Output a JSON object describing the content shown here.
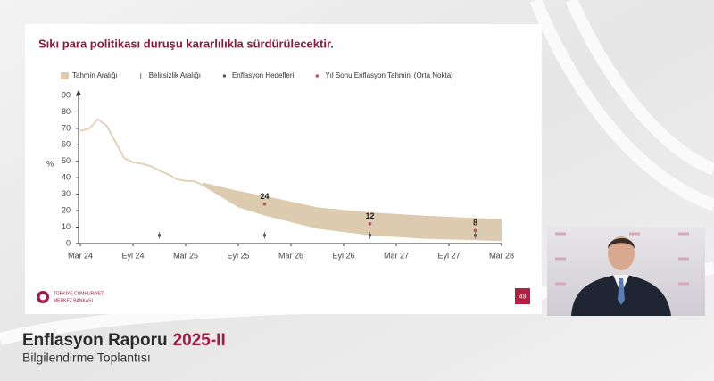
{
  "chart_data": {
    "type": "line",
    "title": "Sıkı para politikası duruşu kararlılıkla sürdürülecektir.",
    "ylabel": "%",
    "xlim": [
      "2024-03",
      "2028-03"
    ],
    "xticks": [
      {
        "value": "2024-03",
        "label": "Mar 24"
      },
      {
        "value": "2024-09",
        "label": "Eyl 24"
      },
      {
        "value": "2025-03",
        "label": "Mar 25"
      },
      {
        "value": "2025-09",
        "label": "Eyl 25"
      },
      {
        "value": "2026-03",
        "label": "Mar 26"
      },
      {
        "value": "2026-09",
        "label": "Eyl 26"
      },
      {
        "value": "2027-03",
        "label": "Mar 27"
      },
      {
        "value": "2027-09",
        "label": "Eyl 27"
      },
      {
        "value": "2028-03",
        "label": "Mar 28"
      }
    ],
    "ylim": [
      0,
      90
    ],
    "yticks": [
      0,
      10,
      20,
      30,
      40,
      50,
      60,
      70,
      80,
      90
    ],
    "series": [
      {
        "name": "Tahmin Aralığı",
        "kind": "band",
        "color": "#dccbae",
        "x": [
          "2025-05",
          "2025-09",
          "2025-12",
          "2026-06",
          "2026-12",
          "2027-06",
          "2027-12",
          "2028-03"
        ],
        "lower": [
          35,
          22,
          17,
          9,
          5,
          3,
          2,
          1.5
        ],
        "upper": [
          37,
          32,
          29,
          22,
          19,
          17,
          15.5,
          15
        ]
      },
      {
        "name": "Belirsizlik Aralığı",
        "kind": "range",
        "color": "#777777",
        "x": [
          "2024-12",
          "2025-12",
          "2026-12",
          "2027-12"
        ],
        "lower": [
          3,
          3,
          3,
          3
        ],
        "upper": [
          7,
          7,
          7,
          7
        ]
      },
      {
        "name": "Enflasyon Hedefleri",
        "kind": "points",
        "color": "#555555",
        "x": [
          "2024-12",
          "2025-12",
          "2026-12",
          "2027-12"
        ],
        "values": [
          5,
          5,
          5,
          5
        ]
      },
      {
        "name": "Yıl Sonu Enflasyon Tahmini (Orta Nokta)",
        "kind": "labeled-points",
        "color": "#c0506e",
        "x": [
          "2025-12",
          "2026-12",
          "2027-12"
        ],
        "values": [
          24,
          12,
          8
        ]
      },
      {
        "kind": "line",
        "color": "#e2d3b8",
        "x": [
          "2024-03",
          "2024-04",
          "2024-05",
          "2024-06",
          "2024-07",
          "2024-08",
          "2024-09",
          "2024-10",
          "2024-11",
          "2024-12",
          "2025-01",
          "2025-02",
          "2025-03",
          "2025-04",
          "2025-05"
        ],
        "values": [
          68.5,
          69.8,
          75.5,
          71.6,
          61.8,
          52,
          49.4,
          48.6,
          47.1,
          44.4,
          42.1,
          39.1,
          38.1,
          37.9,
          35.4
        ]
      }
    ]
  },
  "slide": {
    "logo_text": [
      "TÜRKİYE CUMHURİYET",
      "MERKEZ BANKASI"
    ],
    "page_number": "49"
  },
  "caption": {
    "title": "Enflasyon Raporu",
    "edition": "2025-II",
    "subtitle": "Bilgilendirme Toplantısı"
  }
}
